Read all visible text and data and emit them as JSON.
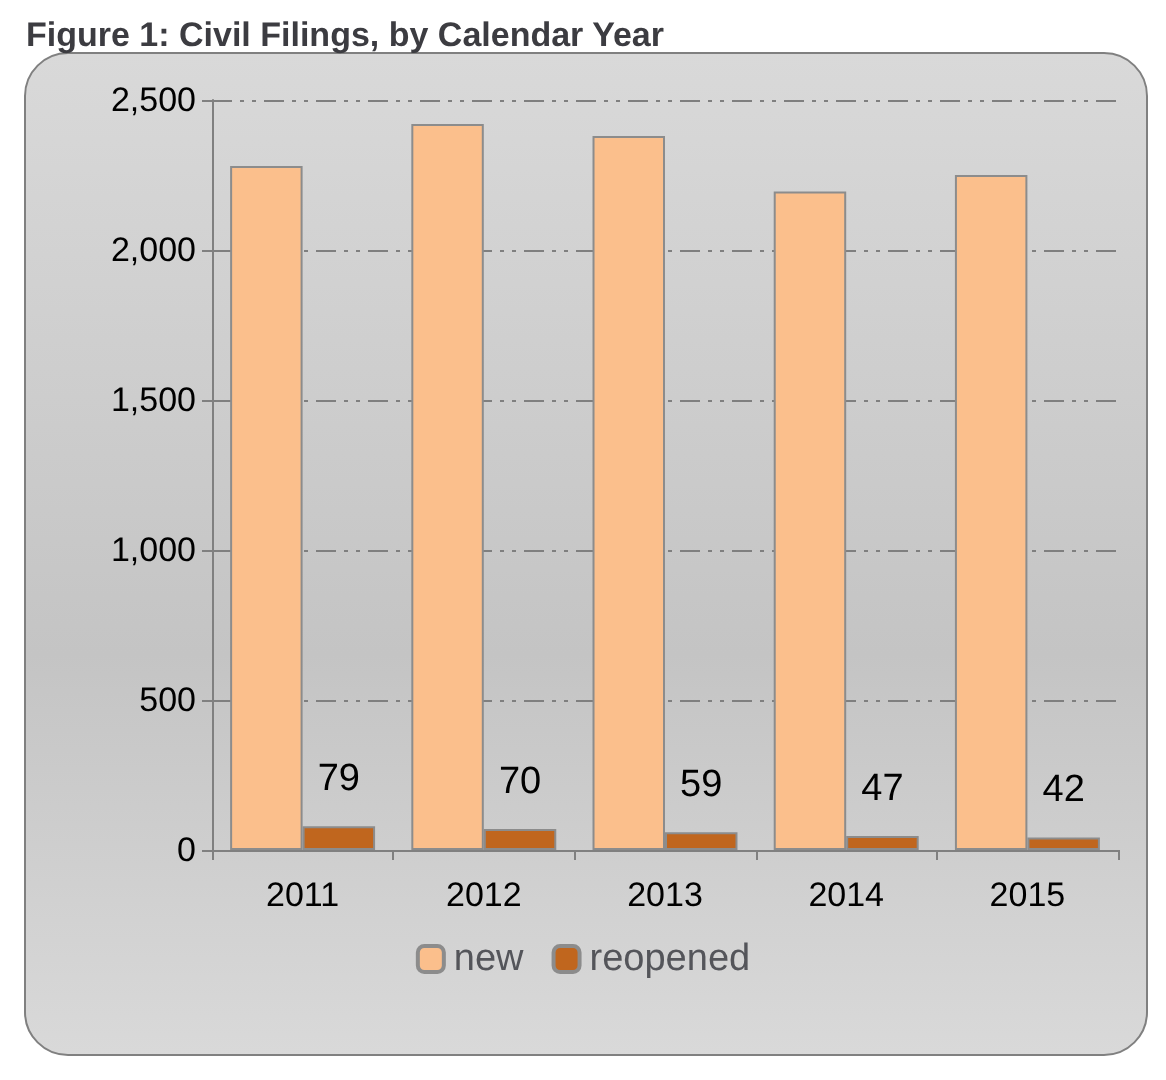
{
  "chart_data": {
    "type": "bar",
    "title": "Figure 1: Civil Filings, by Calendar Year",
    "categories": [
      "2011",
      "2012",
      "2013",
      "2014",
      "2015"
    ],
    "series": [
      {
        "name": "new",
        "color": "#fbbf8c",
        "values": [
          2280,
          2420,
          2380,
          2195,
          2250
        ]
      },
      {
        "name": "reopened",
        "color": "#c0661e",
        "values": [
          79,
          70,
          59,
          47,
          42
        ],
        "value_labels": [
          "79",
          "70",
          "59",
          "47",
          "42"
        ]
      }
    ],
    "ylim": [
      0,
      2500
    ],
    "yticks": [
      {
        "value": 0,
        "label": "0"
      },
      {
        "value": 500,
        "label": "500"
      },
      {
        "value": 1000,
        "label": "1,000"
      },
      {
        "value": 1500,
        "label": "1,500"
      },
      {
        "value": 2000,
        "label": "2,000"
      },
      {
        "value": 2500,
        "label": "2,500"
      }
    ],
    "grid": "y",
    "legend": "bottom"
  }
}
